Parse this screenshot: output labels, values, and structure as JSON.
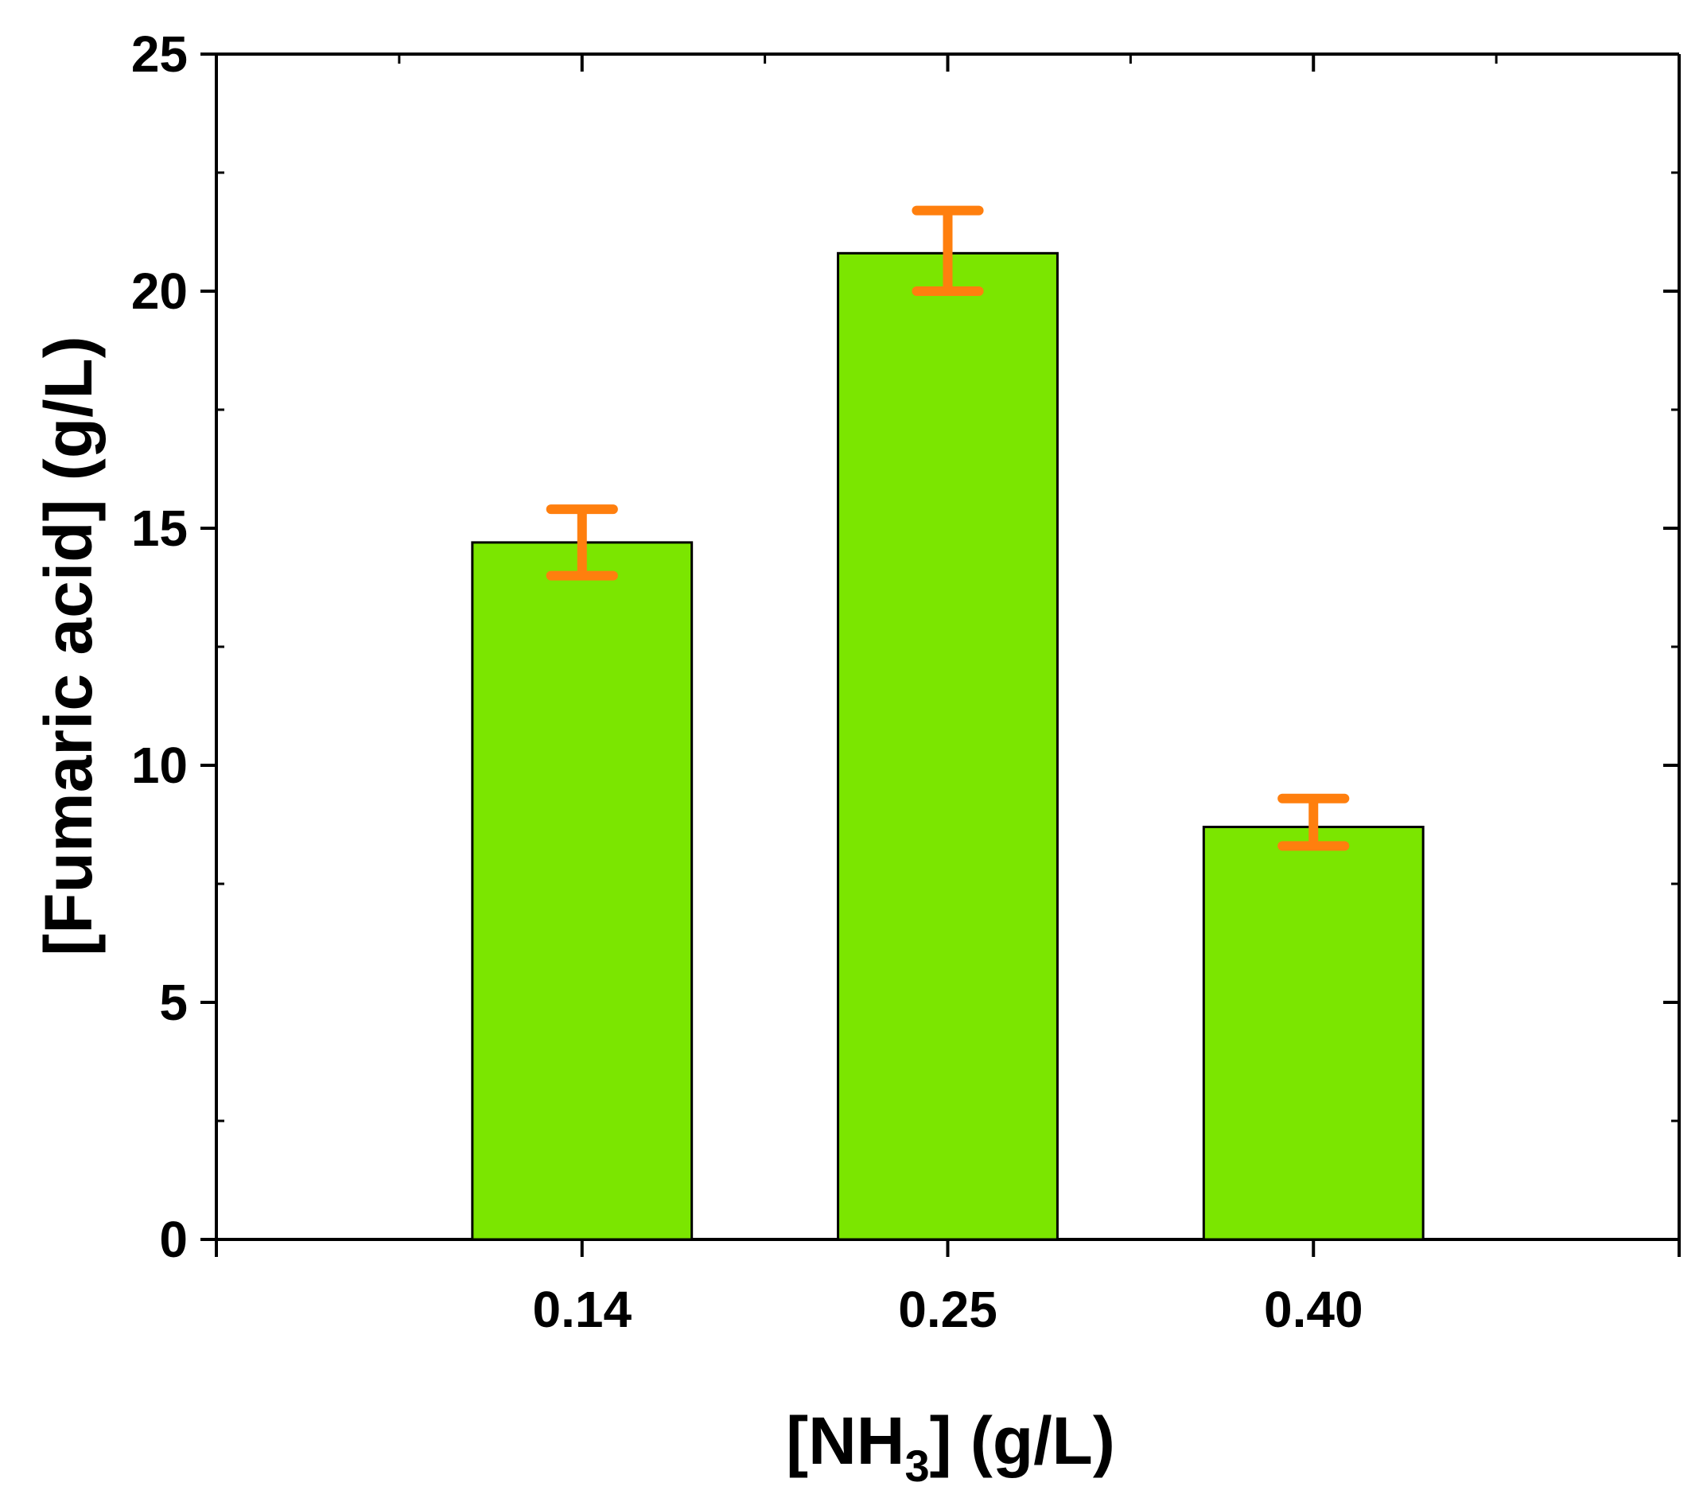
{
  "chart_data": {
    "type": "bar",
    "categories": [
      "0.14",
      "0.25",
      "0.40"
    ],
    "values": [
      14.7,
      20.8,
      8.7
    ],
    "errors": [
      [
        14.0,
        15.4
      ],
      [
        20.0,
        21.7
      ],
      [
        8.3,
        9.3
      ]
    ],
    "xlabel": {
      "main": "[NH",
      "sub": "3",
      "rest": "] (g/L)"
    },
    "ylabel": "[Fumaric acid] (g/L)",
    "ylim": [
      0,
      25
    ],
    "y_ticks": [
      "0",
      "5",
      "10",
      "15",
      "20",
      "25"
    ],
    "grid": false,
    "colors": {
      "bar": "#7be600",
      "error": "#ff7f0e",
      "axis": "#000000"
    }
  }
}
